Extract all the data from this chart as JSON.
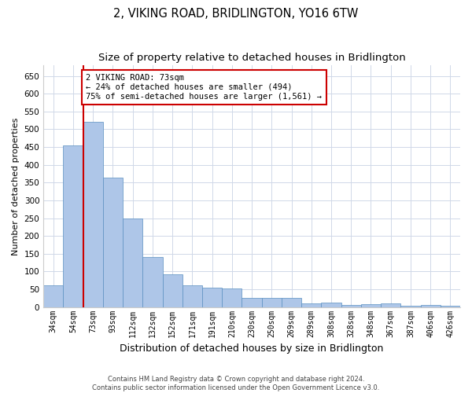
{
  "title": "2, VIKING ROAD, BRIDLINGTON, YO16 6TW",
  "subtitle": "Size of property relative to detached houses in Bridlington",
  "xlabel": "Distribution of detached houses by size in Bridlington",
  "ylabel": "Number of detached properties",
  "categories": [
    "34sqm",
    "54sqm",
    "73sqm",
    "93sqm",
    "112sqm",
    "132sqm",
    "152sqm",
    "171sqm",
    "191sqm",
    "210sqm",
    "230sqm",
    "250sqm",
    "269sqm",
    "289sqm",
    "308sqm",
    "328sqm",
    "348sqm",
    "367sqm",
    "387sqm",
    "406sqm",
    "426sqm"
  ],
  "values": [
    62,
    455,
    520,
    365,
    248,
    140,
    92,
    62,
    55,
    53,
    25,
    25,
    25,
    10,
    12,
    5,
    7,
    10,
    3,
    5,
    3
  ],
  "bar_color": "#aec6e8",
  "bar_edge_color": "#5a8fc0",
  "marker_index": 2,
  "marker_color": "#cc0000",
  "annotation_line1": "2 VIKING ROAD: 73sqm",
  "annotation_line2": "← 24% of detached houses are smaller (494)",
  "annotation_line3": "75% of semi-detached houses are larger (1,561) →",
  "annotation_box_color": "#ffffff",
  "annotation_box_edge": "#cc0000",
  "ylim": [
    0,
    680
  ],
  "yticks": [
    0,
    50,
    100,
    150,
    200,
    250,
    300,
    350,
    400,
    450,
    500,
    550,
    600,
    650
  ],
  "footer_line1": "Contains HM Land Registry data © Crown copyright and database right 2024.",
  "footer_line2": "Contains public sector information licensed under the Open Government Licence v3.0.",
  "bg_color": "#ffffff",
  "grid_color": "#d0d8e8",
  "title_fontsize": 10.5,
  "subtitle_fontsize": 9.5,
  "bar_width": 1.0
}
